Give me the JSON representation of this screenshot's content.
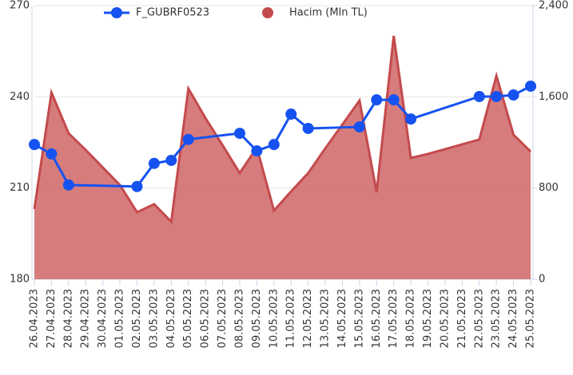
{
  "chart_data": {
    "type": "line-area",
    "categories": [
      "26.04.2023",
      "27.04.2023",
      "28.04.2023",
      "29.04.2023",
      "30.04.2023",
      "01.05.2023",
      "02.05.2023",
      "03.05.2023",
      "04.05.2023",
      "05.05.2023",
      "06.05.2023",
      "07.05.2023",
      "08.05.2023",
      "09.05.2023",
      "10.05.2023",
      "11.05.2023",
      "12.05.2023",
      "13.05.2023",
      "14.05.2023",
      "15.05.2023",
      "16.05.2023",
      "17.05.2023",
      "18.05.2023",
      "19.05.2023",
      "20.05.2023",
      "21.05.2023",
      "22.05.2023",
      "23.05.2023",
      "24.05.2023",
      "25.05.2023"
    ],
    "series": [
      {
        "name": "F_GUBRF0523",
        "type": "line",
        "color": "#1652f0",
        "axis": "y",
        "values": [
          224.3,
          221.2,
          211,
          null,
          null,
          null,
          210.5,
          218.1,
          219.1,
          226,
          null,
          null,
          228,
          222.2,
          224.3,
          234.3,
          229.6,
          null,
          null,
          230.1,
          239,
          239,
          232.7,
          null,
          null,
          null,
          240.1,
          240.1,
          240.6,
          243.5
        ]
      },
      {
        "name": "Hacim (Mln TL)",
        "type": "area",
        "color": "#d47576",
        "axis": "y2",
        "values": [
          616,
          1637,
          1280,
          1134,
          980,
          826,
          588,
          658,
          504,
          1672,
          1413,
          1175,
          931,
          1155,
          602,
          770,
          931,
          1148,
          1357,
          1567,
          763,
          2134,
          1064,
          1099,
          1141,
          1183,
          1225,
          1784,
          1267,
          1120
        ]
      }
    ],
    "connect_gaps": true,
    "ylim": [
      180,
      270
    ],
    "yticks": [
      180,
      210,
      240,
      270
    ],
    "y2lim": [
      0,
      2400
    ],
    "y2ticks": [
      0,
      {
        "value": 800,
        "label": "800"
      },
      {
        "value": 1600,
        "label": "1,600"
      },
      {
        "value": 2400,
        "label": "2,400"
      }
    ],
    "grid": true,
    "legend": "top"
  }
}
